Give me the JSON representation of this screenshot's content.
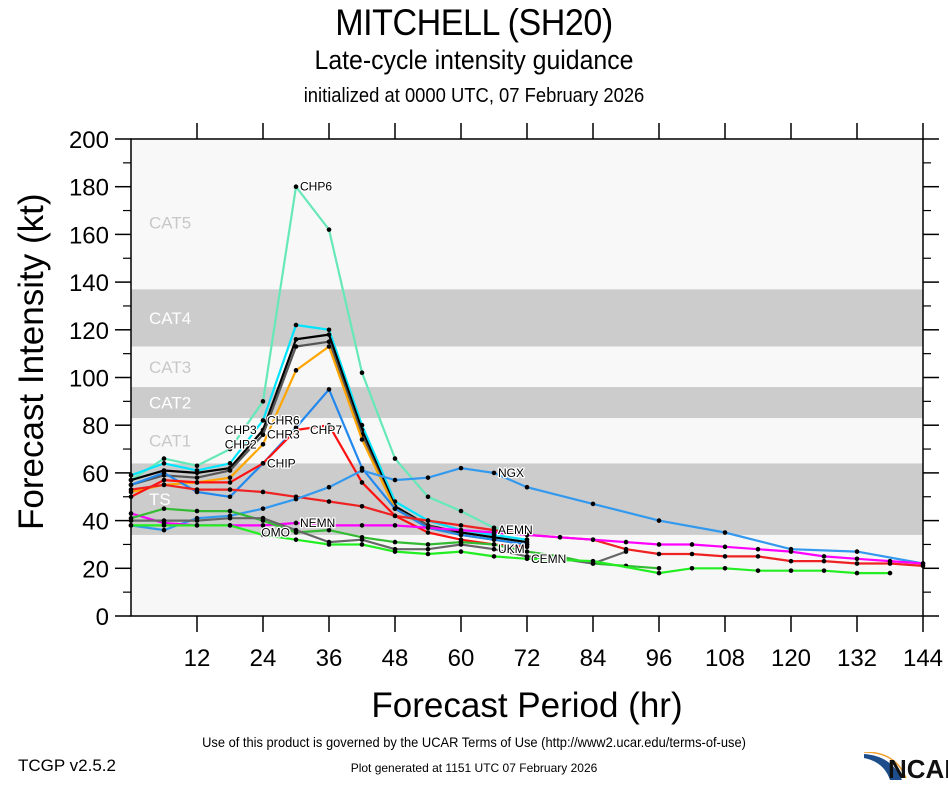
{
  "header": {
    "title": "MITCHELL (SH20)",
    "subtitle": "Late-cycle intensity guidance",
    "initialized": "initialized at 0000 UTC, 07 February 2026"
  },
  "footer": {
    "terms": "Use of this product is governed by the UCAR Terms of Use (http://www2.ucar.edu/terms-of-use)",
    "version": "TCGP v2.5.2",
    "generated": "Plot generated at 1151 UTC   07 February 2026",
    "logo_text": "NCAR"
  },
  "chart_data": {
    "type": "line",
    "title": "MITCHELL (SH20)",
    "subtitle": "Late-cycle intensity guidance",
    "xlabel": "Forecast Period (hr)",
    "ylabel": "Forecast Intensity (kt)",
    "xlim": [
      0,
      144
    ],
    "ylim": [
      0,
      200
    ],
    "xticks": [
      12,
      24,
      36,
      48,
      60,
      72,
      84,
      96,
      108,
      120,
      132,
      144
    ],
    "yticks": [
      0,
      20,
      40,
      60,
      80,
      100,
      120,
      140,
      160,
      180,
      200
    ],
    "grid": false,
    "categories_bands": [
      {
        "label": "TS",
        "range": [
          34,
          64
        ],
        "shaded": true
      },
      {
        "label": "CAT1",
        "range": [
          64,
          83
        ],
        "shaded": false
      },
      {
        "label": "CAT2",
        "range": [
          83,
          96
        ],
        "shaded": true
      },
      {
        "label": "CAT3",
        "range": [
          96,
          113
        ],
        "shaded": false
      },
      {
        "label": "CAT4",
        "range": [
          113,
          137
        ],
        "shaded": true
      },
      {
        "label": "CAT5",
        "range": [
          137,
          200
        ],
        "shaded": false
      }
    ],
    "series": [
      {
        "name": "CHP6",
        "color": "#66e8b8",
        "label_hr": 30,
        "x": [
          0,
          6,
          12,
          18,
          24,
          30,
          36,
          42,
          48,
          54,
          60,
          66,
          72
        ],
        "y": [
          57,
          66,
          63,
          70,
          90,
          180,
          162,
          102,
          66,
          50,
          44,
          37,
          34
        ]
      },
      {
        "name": "CHR6",
        "color": "#00e5ff",
        "label_hr": 24,
        "x": [
          0,
          6,
          12,
          18,
          24,
          30,
          36,
          42,
          48,
          54,
          60,
          66,
          72
        ],
        "y": [
          59,
          64,
          61,
          64,
          82,
          122,
          120,
          80,
          48,
          40,
          36,
          34,
          32
        ]
      },
      {
        "name": "CHP3",
        "color": "#000000",
        "label_hr": 24,
        "x": [
          0,
          6,
          12,
          18,
          24,
          30,
          36,
          42,
          48,
          54,
          60,
          66,
          72
        ],
        "y": [
          57,
          61,
          60,
          62,
          78,
          116,
          118,
          78,
          46,
          38,
          35,
          33,
          31
        ]
      },
      {
        "name": "CHR3",
        "color": "#555555",
        "label_hr": 24,
        "x": [
          0,
          6,
          12,
          18,
          24,
          30,
          36,
          42,
          48,
          54,
          60,
          66,
          72
        ],
        "y": [
          55,
          59,
          58,
          61,
          76,
          113,
          115,
          76,
          45,
          38,
          34,
          32,
          30
        ]
      },
      {
        "name": "CHP2",
        "color": "#ffa500",
        "label_hr": 24,
        "x": [
          0,
          6,
          12,
          18,
          24,
          30,
          36,
          42,
          48,
          54,
          60,
          66,
          72
        ],
        "y": [
          52,
          55,
          56,
          58,
          72,
          103,
          113,
          74,
          45,
          37,
          34,
          32,
          30
        ]
      },
      {
        "name": "CHIP",
        "color": "#2288ee",
        "label_hr": 24,
        "x": [
          0,
          6,
          12,
          18,
          24,
          30,
          36,
          42,
          48,
          54,
          60,
          66,
          72
        ],
        "y": [
          55,
          60,
          52,
          50,
          64,
          79,
          95,
          62,
          45,
          37,
          34,
          32,
          30
        ]
      },
      {
        "name": "CHP7",
        "color": "#ff1111",
        "label_hr": 30,
        "x": [
          0,
          6,
          12,
          18,
          24,
          30,
          36,
          42,
          48,
          54,
          60,
          66,
          72
        ],
        "y": [
          50,
          57,
          56,
          56,
          64,
          78,
          80,
          56,
          42,
          35,
          32,
          30,
          29
        ]
      },
      {
        "name": "AEMN",
        "color": "#ee2222",
        "label_hr": 66,
        "x": [
          0,
          6,
          12,
          18,
          24,
          30,
          36,
          42,
          48,
          54,
          60,
          66,
          72,
          78,
          84,
          90,
          96,
          102,
          108,
          114,
          120,
          126,
          132,
          138,
          144
        ],
        "y": [
          53,
          55,
          53,
          53,
          52,
          50,
          48,
          46,
          42,
          40,
          38,
          36,
          34,
          33,
          32,
          28,
          26,
          26,
          25,
          25,
          23,
          23,
          22,
          22,
          21
        ]
      },
      {
        "name": "NGX",
        "color": "#3399ee",
        "label_hr": 66,
        "x": [
          0,
          6,
          12,
          18,
          24,
          30,
          36,
          42,
          48,
          54,
          60,
          66,
          72,
          84,
          96,
          108,
          120,
          132,
          144
        ],
        "y": [
          38,
          36,
          41,
          42,
          45,
          49,
          54,
          61,
          57,
          58,
          62,
          60,
          54,
          47,
          40,
          35,
          28,
          27,
          22
        ]
      },
      {
        "name": "NEMN",
        "color": "#ff00ff",
        "label_hr": 30,
        "x": [
          0,
          6,
          12,
          18,
          24,
          30,
          36,
          42,
          48,
          54,
          60,
          66,
          72,
          78,
          84,
          90,
          96,
          102,
          108,
          114,
          120,
          126,
          132,
          138,
          144
        ],
        "y": [
          43,
          39,
          38,
          38,
          38,
          39,
          38,
          38,
          38,
          37,
          36,
          35,
          34,
          33,
          32,
          31,
          30,
          30,
          29,
          28,
          27,
          25,
          24,
          23,
          22
        ]
      },
      {
        "name": "OMO",
        "color": "#33bb33",
        "label_hr": 30,
        "x": [
          0,
          6,
          12,
          18,
          24,
          30,
          36,
          42,
          48,
          54,
          60,
          66,
          72,
          78,
          84,
          90,
          96
        ],
        "y": [
          41,
          45,
          44,
          44,
          40,
          35,
          36,
          33,
          31,
          30,
          31,
          30,
          27,
          25,
          22,
          21,
          20
        ]
      },
      {
        "name": "UKM",
        "color": "#666666",
        "label_hr": 66,
        "x": [
          0,
          6,
          12,
          18,
          24,
          30,
          36,
          42,
          48,
          54,
          60,
          66,
          72,
          78,
          84,
          90
        ],
        "y": [
          40,
          40,
          40,
          41,
          41,
          36,
          31,
          32,
          28,
          28,
          30,
          28,
          25,
          24,
          22,
          27
        ]
      },
      {
        "name": "CEMN",
        "color": "#22ee22",
        "label_hr": 72,
        "x": [
          0,
          6,
          12,
          18,
          24,
          30,
          36,
          42,
          48,
          54,
          60,
          66,
          72,
          84,
          96,
          102,
          108,
          114,
          120,
          126,
          132,
          138
        ],
        "y": [
          38,
          38,
          38,
          38,
          34,
          32,
          30,
          30,
          27,
          26,
          27,
          25,
          24,
          23,
          18,
          20,
          20,
          19,
          19,
          19,
          18,
          18
        ]
      }
    ]
  }
}
